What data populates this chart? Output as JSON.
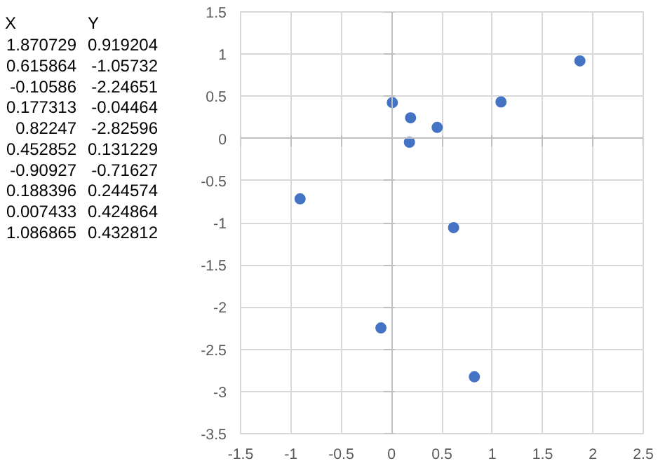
{
  "chart_data": [
    {
      "type": "other",
      "annotations": [
        "X",
        "Y",
        "1.870729",
        "0.919204",
        "0.615864",
        "-1.05732",
        "-0.10586",
        "-2.24651",
        "0.177313",
        "-0.04464",
        "0.82247",
        "-2.82596",
        "0.452852",
        "0.131229",
        "-0.90927",
        "-0.71627",
        "0.188396",
        "0.244574",
        "0.007433",
        "0.424864",
        "1.086865",
        "0.432812"
      ]
    },
    {
      "type": "scatter",
      "x": [
        1.870729,
        0.615864,
        -0.10586,
        0.177313,
        0.82247,
        0.452852,
        -0.90927,
        0.188396,
        0.007433,
        1.086865
      ],
      "series": [
        {
          "color": "#4472c4",
          "values": [
            0.919204,
            -1.05732,
            -2.24651,
            -0.04464,
            -2.82596,
            0.131229,
            -0.71627,
            0.244574,
            0.424864,
            0.432812
          ]
        }
      ],
      "xlim": [
        -1.5,
        2.5
      ],
      "xticks": [
        -1.5,
        -1,
        -0.5,
        0,
        0.5,
        1,
        1.5,
        2,
        2.5
      ],
      "ylim": [
        -3.5,
        1.5
      ],
      "yticks": [
        -3.5,
        -3,
        -2.5,
        -2,
        -1.5,
        -1,
        -0.5,
        0,
        0.5,
        1,
        1.5
      ],
      "grid": true,
      "marker": "circle"
    }
  ]
}
